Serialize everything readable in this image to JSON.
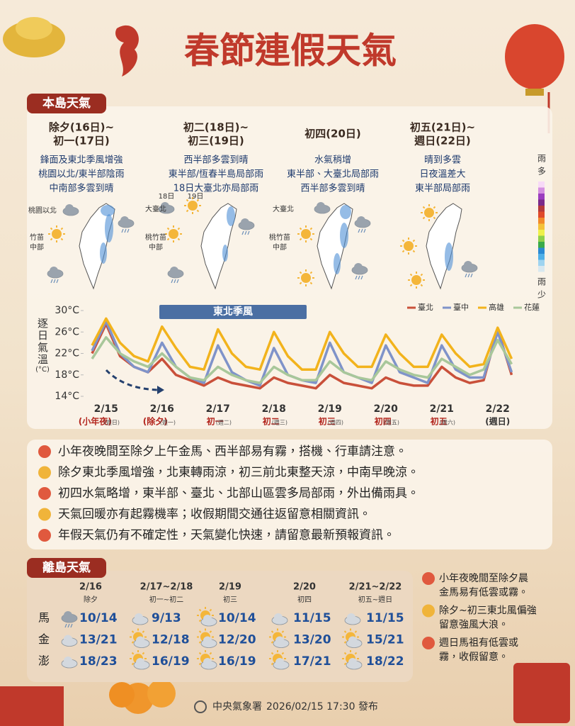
{
  "title": "春節連假天氣",
  "main_island": {
    "label": "本島天氣",
    "panels": [
      {
        "header": [
          "除夕(16日)~",
          "初一(17日)"
        ],
        "lines": [
          "鋒面及東北季風增強",
          "桃園以北/東半部陰雨",
          "中南部多雲到晴"
        ],
        "map_labels": [
          [
            "桃園以北"
          ],
          [
            "竹苗",
            "中部"
          ]
        ]
      },
      {
        "header": [
          "初二(18日)~",
          "初三(19日)"
        ],
        "lines": [
          "西半部多雲到晴",
          "東半部/恆春半島局部雨",
          "18日大臺北亦局部雨"
        ],
        "map_labels": [
          [
            "大臺北"
          ],
          [
            "18日"
          ],
          [
            "19日"
          ],
          [
            "桃竹苗",
            "中部"
          ]
        ]
      },
      {
        "header": [
          "初四(20日)"
        ],
        "lines": [
          "水氣稍增",
          "東半部、大臺北局部雨",
          "西半部多雲到晴"
        ],
        "map_labels": [
          [
            "大臺北"
          ],
          [
            "桃竹苗",
            "中部"
          ]
        ]
      },
      {
        "header": [
          "初五(21日)~",
          "週日(22日)"
        ],
        "lines": [
          "晴到多雲",
          "日夜溫差大",
          "東半部局部雨"
        ]
      }
    ],
    "rain_scale": {
      "high": [
        "雨",
        "多"
      ],
      "low": [
        "雨",
        "少"
      ]
    }
  },
  "chart_data": {
    "type": "line",
    "title": "逐日氣溫",
    "unit": "(°C)",
    "annotation": "東北季風",
    "categories": [
      null,
      "2/15",
      null,
      null,
      null,
      "2/16",
      null,
      null,
      null,
      "2/17",
      null,
      null,
      null,
      "2/18",
      null,
      null,
      null,
      "2/19",
      null,
      null,
      null,
      "2/20",
      null,
      null,
      null,
      "2/21",
      null,
      null,
      null,
      "2/22",
      null
    ],
    "day_notes": [
      {
        "note": "(小年夜)",
        "weekday": "(週日)"
      },
      {
        "note": "(除夕)",
        "weekday": "(週一)"
      },
      {
        "note": "初一",
        "weekday": "(週二)"
      },
      {
        "note": "初二",
        "weekday": "(週三)"
      },
      {
        "note": "初三",
        "weekday": "(週四)"
      },
      {
        "note": "初四",
        "weekday": "(週五)"
      },
      {
        "note": "初五",
        "weekday": "(週六)"
      },
      {
        "note": "(週日)"
      }
    ],
    "ylim": [
      14,
      30
    ],
    "yticks": [
      {
        "value": 14,
        "label": "14°C"
      },
      {
        "value": 18,
        "label": "18°C"
      },
      {
        "value": 22,
        "label": "22°C"
      },
      {
        "value": 26,
        "label": "26°C"
      },
      {
        "value": 30,
        "label": "30°C"
      }
    ],
    "series": [
      {
        "name": "臺北",
        "color": "#c9503a",
        "values": [
          22,
          27.5,
          21.5,
          19.5,
          18.5,
          21,
          18,
          17,
          16,
          17.5,
          16.5,
          16,
          15.5,
          17.5,
          16.5,
          16,
          15.5,
          18,
          16.5,
          16,
          15.5,
          17.5,
          16.5,
          16,
          16,
          19.5,
          17.5,
          16.5,
          17,
          26.5,
          18
        ]
      },
      {
        "name": "臺中",
        "color": "#7f93c9",
        "values": [
          22.5,
          28,
          22,
          19.5,
          18.5,
          24,
          19.5,
          17.5,
          16.5,
          23.5,
          18.5,
          17,
          16,
          23,
          18,
          17,
          16.5,
          24,
          18.5,
          17.5,
          16.5,
          23.5,
          18.5,
          17.5,
          16.5,
          23.5,
          19,
          17.5,
          17.5,
          26,
          18.5
        ]
      },
      {
        "name": "高雄",
        "color": "#f2b31c",
        "values": [
          23.5,
          28.5,
          24,
          21.5,
          20.5,
          27,
          23,
          19.5,
          19,
          26.5,
          22,
          19.5,
          19,
          26,
          21.5,
          19,
          19,
          26,
          22,
          19.5,
          19.5,
          25.5,
          22,
          19.5,
          19.5,
          25.5,
          22,
          19.5,
          20,
          26.8,
          21
        ]
      },
      {
        "name": "花蓮",
        "color": "#a8c79a",
        "values": [
          21,
          25,
          22,
          20.5,
          19.5,
          22,
          19.5,
          17.5,
          17,
          19.5,
          18,
          17,
          16.5,
          19.5,
          18,
          17,
          17,
          20.5,
          18.5,
          17.5,
          17,
          20.5,
          19,
          18,
          17.5,
          21,
          19.5,
          18,
          19,
          24.5,
          20
        ]
      }
    ]
  },
  "notes": [
    "小年夜晚間至除夕上午金馬、西半部易有霧，搭機、行車請注意。",
    "除夕東北季風增強，北東轉雨涼，初三前北東整天涼，中南早晚涼。",
    "初四水氣略增，東半部、臺北、北部山區雲多局部雨，外出備雨具。",
    "天氣回暖亦有起霧機率；收假期間交通往返留意相關資訊。",
    "年假天氣仍有不確定性，天氣變化快速，請留意最新預報資訊。"
  ],
  "outlying": {
    "label": "離島天氣",
    "columns": [
      {
        "date": "2/16",
        "note": "除夕"
      },
      {
        "date": "2/17~2/18",
        "note": "初一~初二"
      },
      {
        "date": "2/19",
        "note": "初三"
      },
      {
        "date": "2/20",
        "note": "初四"
      },
      {
        "date": "2/21~2/22",
        "note": "初五~週日"
      }
    ],
    "rows": [
      {
        "island": "馬",
        "values": [
          "10/14",
          "9/13",
          "10/14",
          "11/15",
          "11/15"
        ]
      },
      {
        "island": "金",
        "values": [
          "13/21",
          "12/18",
          "12/20",
          "13/20",
          "15/21"
        ]
      },
      {
        "island": "澎",
        "values": [
          "18/23",
          "16/19",
          "16/19",
          "17/21",
          "18/22"
        ]
      }
    ],
    "notes": [
      [
        "小年夜晚間至除夕晨",
        "金馬易有低雲或霧。"
      ],
      [
        "除夕~初三東北風偏強",
        "留意強風大浪。"
      ],
      [
        "週日馬祖有低雲或",
        "霧，收假留意。"
      ]
    ]
  },
  "footer": {
    "agency": "中央氣象署",
    "issued": "2026/02/15 17:30 發布"
  }
}
